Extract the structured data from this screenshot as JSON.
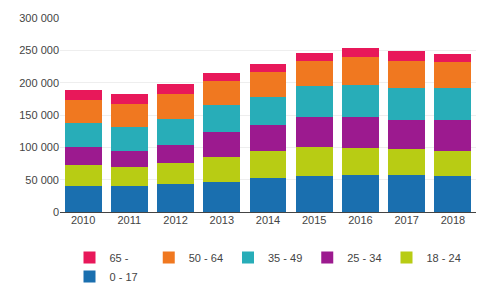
{
  "chart_data": {
    "type": "bar",
    "stacked": true,
    "grid": true,
    "legend": "bottom",
    "categories": [
      "2010",
      "2011",
      "2012",
      "2013",
      "2014",
      "2015",
      "2016",
      "2017",
      "2018"
    ],
    "series": [
      {
        "name": "0 - 17",
        "color": "#1a6faf",
        "values": [
          40000,
          40000,
          43000,
          47000,
          52000,
          55000,
          57000,
          57000,
          55000
        ]
      },
      {
        "name": "18 - 24",
        "color": "#b8cc14",
        "values": [
          32000,
          30000,
          33000,
          38000,
          43000,
          45000,
          42000,
          40000,
          40000
        ]
      },
      {
        "name": "25 - 34",
        "color": "#9c1a8f",
        "values": [
          28000,
          25000,
          28000,
          38000,
          40000,
          47000,
          48000,
          46000,
          47000
        ]
      },
      {
        "name": "35 - 49",
        "color": "#28adb8",
        "values": [
          38000,
          37000,
          40000,
          42000,
          43000,
          48000,
          50000,
          48000,
          50000
        ]
      },
      {
        "name": "50 - 64",
        "color": "#f07820",
        "values": [
          35000,
          35000,
          38000,
          38000,
          38000,
          38000,
          43000,
          43000,
          40000
        ]
      },
      {
        "name": "65 -",
        "color": "#e8185a",
        "values": [
          15000,
          15000,
          16000,
          12000,
          13000,
          13000,
          13000,
          15000,
          12000
        ]
      }
    ],
    "ylim": [
      0,
      300000
    ],
    "yticks": [
      0,
      {
        "value": 50000,
        "label": "50 000"
      },
      {
        "value": 100000,
        "label": "100 000"
      },
      {
        "value": 150000,
        "label": "150 000"
      },
      {
        "value": 200000,
        "label": "200 000"
      },
      {
        "value": 250000,
        "label": "250 000"
      },
      {
        "value": 300000,
        "label": "300 000"
      }
    ]
  }
}
